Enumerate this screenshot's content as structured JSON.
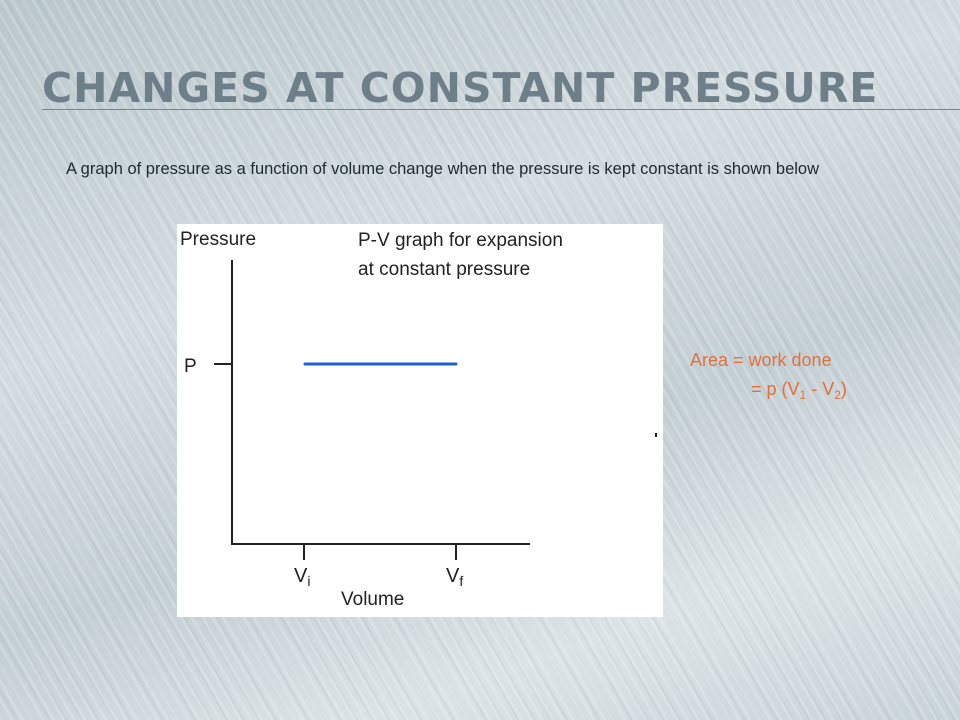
{
  "slide": {
    "title": "CHANGES AT CONSTANT PRESSURE",
    "intro_text": "A graph of pressure as a function of volume change when the pressure is kept constant is shown below"
  },
  "graph": {
    "y_axis_label": "Pressure",
    "x_axis_label": "Volume",
    "heading_line1": "P-V graph for expansion",
    "heading_line2": "at constant pressure",
    "p_tick_label": "P",
    "vi_main": "V",
    "vi_sub": "i",
    "vf_main": "V",
    "vf_sub": "f",
    "line_color": "#1f5fd6"
  },
  "formula": {
    "line1": "Area = work done",
    "prefix": "= p (V",
    "sub1": "1",
    "middle": " - V",
    "sub2": "2",
    "suffix": ")",
    "color": "#e0703c"
  }
}
